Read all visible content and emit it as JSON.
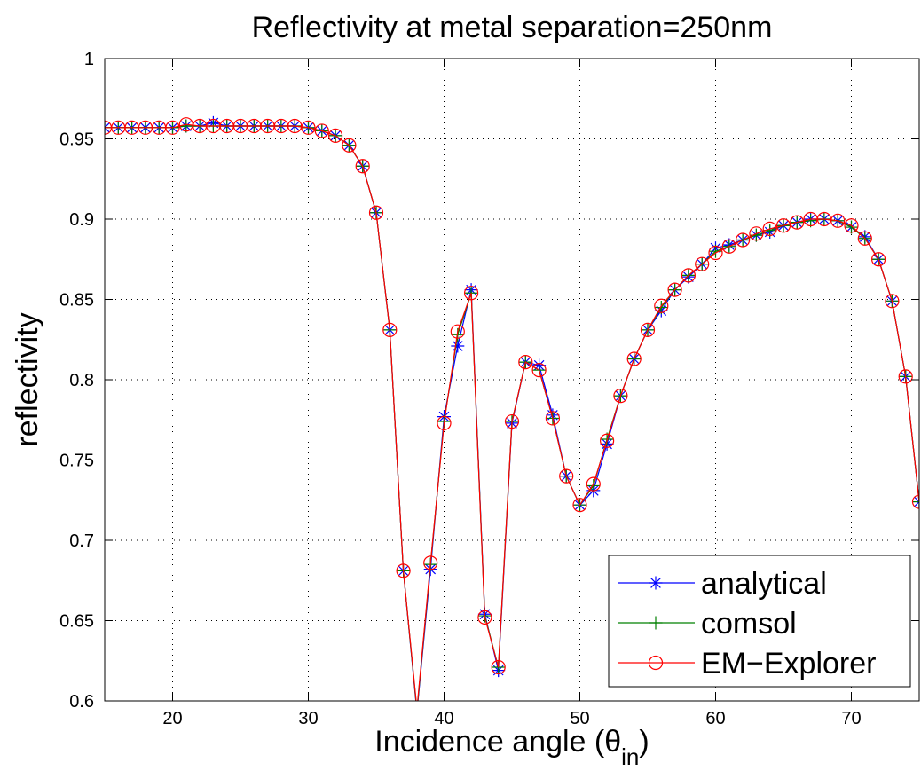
{
  "chart_data": {
    "type": "line",
    "title": "Reflectivity at metal separation=250nm",
    "xlabel_main": "Incidence angle (θ",
    "xlabel_sub": "in",
    "xlabel_close": ")",
    "ylabel": "reflectivity",
    "xlim": [
      15,
      75
    ],
    "ylim": [
      0.6,
      1.0
    ],
    "x_ticks": [
      20,
      30,
      40,
      50,
      60,
      70
    ],
    "y_ticks": [
      0.6,
      0.65,
      0.7,
      0.75,
      0.8,
      0.85,
      0.9,
      0.95,
      1
    ],
    "y_tick_labels": [
      "0.6",
      "0.65",
      "0.7",
      "0.75",
      "0.8",
      "0.85",
      "0.9",
      "0.95",
      "1"
    ],
    "grid": true,
    "legend_position": "bottom-right",
    "x": [
      15,
      16,
      17,
      18,
      19,
      20,
      21,
      22,
      23,
      24,
      25,
      26,
      27,
      28,
      29,
      30,
      31,
      32,
      33,
      34,
      35,
      36,
      37,
      38,
      39,
      40,
      41,
      42,
      43,
      44,
      45,
      46,
      47,
      48,
      49,
      50,
      51,
      52,
      53,
      54,
      55,
      56,
      57,
      58,
      59,
      60,
      61,
      62,
      63,
      64,
      65,
      66,
      67,
      68,
      69,
      70,
      71,
      72,
      73,
      74,
      75
    ],
    "series": [
      {
        "name": "analytical",
        "color": "#0000ff",
        "marker": "star",
        "values": [
          0.957,
          0.957,
          0.957,
          0.957,
          0.957,
          0.957,
          0.958,
          0.958,
          0.96,
          0.958,
          0.958,
          0.958,
          0.958,
          0.958,
          0.958,
          0.957,
          0.955,
          0.952,
          0.946,
          0.933,
          0.904,
          0.831,
          0.681,
          0.593,
          0.682,
          0.777,
          0.821,
          0.856,
          0.654,
          0.619,
          0.773,
          0.811,
          0.809,
          0.778,
          0.74,
          0.722,
          0.731,
          0.76,
          0.79,
          0.813,
          0.831,
          0.843,
          0.856,
          0.864,
          0.872,
          0.882,
          0.884,
          0.887,
          0.89,
          0.892,
          0.896,
          0.898,
          0.9,
          0.9,
          0.899,
          0.895,
          0.889,
          0.875,
          0.849,
          0.802,
          0.724
        ]
      },
      {
        "name": "comsol",
        "color": "#008000",
        "marker": "plus",
        "values": [
          0.957,
          0.957,
          0.957,
          0.957,
          0.957,
          0.957,
          0.958,
          0.958,
          0.958,
          0.958,
          0.958,
          0.958,
          0.958,
          0.958,
          0.958,
          0.957,
          0.955,
          0.952,
          0.946,
          0.933,
          0.904,
          0.831,
          0.681,
          0.594,
          0.685,
          0.774,
          0.828,
          0.854,
          0.653,
          0.621,
          0.774,
          0.811,
          0.806,
          0.776,
          0.74,
          0.722,
          0.734,
          0.763,
          0.79,
          0.813,
          0.831,
          0.845,
          0.856,
          0.865,
          0.872,
          0.88,
          0.883,
          0.887,
          0.89,
          0.893,
          0.896,
          0.898,
          0.899,
          0.9,
          0.899,
          0.895,
          0.888,
          0.875,
          0.849,
          0.802,
          0.724
        ]
      },
      {
        "name": "EM−Explorer",
        "color": "#ff0000",
        "marker": "circle",
        "values": [
          0.957,
          0.957,
          0.957,
          0.957,
          0.957,
          0.957,
          0.959,
          0.958,
          0.958,
          0.958,
          0.958,
          0.958,
          0.958,
          0.958,
          0.958,
          0.957,
          0.955,
          0.952,
          0.946,
          0.933,
          0.904,
          0.831,
          0.681,
          0.595,
          0.686,
          0.773,
          0.83,
          0.854,
          0.652,
          0.621,
          0.774,
          0.811,
          0.806,
          0.776,
          0.74,
          0.722,
          0.735,
          0.762,
          0.79,
          0.813,
          0.831,
          0.846,
          0.856,
          0.865,
          0.872,
          0.879,
          0.883,
          0.887,
          0.891,
          0.894,
          0.896,
          0.898,
          0.9,
          0.9,
          0.899,
          0.896,
          0.888,
          0.875,
          0.849,
          0.802,
          0.724
        ]
      }
    ]
  }
}
